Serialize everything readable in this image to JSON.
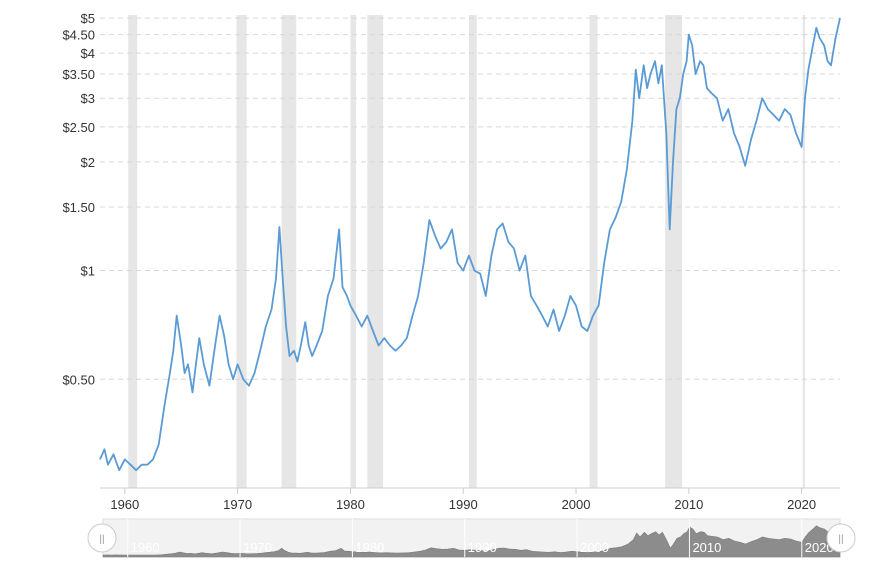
{
  "chart_data": {
    "type": "line",
    "title": "",
    "xlabel": "",
    "ylabel": "",
    "y_scale": "log",
    "ylim": [
      0.25,
      5.1
    ],
    "xlim": [
      1957.8,
      2023.4
    ],
    "y_ticks": [
      {
        "value": 5,
        "label": "$5"
      },
      {
        "value": 4.5,
        "label": "$4.50"
      },
      {
        "value": 4,
        "label": "$4"
      },
      {
        "value": 3.5,
        "label": "$3.50"
      },
      {
        "value": 3,
        "label": "$3"
      },
      {
        "value": 2.5,
        "label": "$2.50"
      },
      {
        "value": 2,
        "label": "$2"
      },
      {
        "value": 1.5,
        "label": "$1.50"
      },
      {
        "value": 1,
        "label": "$1"
      },
      {
        "value": 0.5,
        "label": "$0.50"
      }
    ],
    "x_ticks": [
      {
        "value": 1960,
        "label": "1960"
      },
      {
        "value": 1970,
        "label": "1970"
      },
      {
        "value": 1980,
        "label": "1980"
      },
      {
        "value": 1990,
        "label": "1990"
      },
      {
        "value": 2000,
        "label": "2000"
      },
      {
        "value": 2010,
        "label": "2010"
      },
      {
        "value": 2020,
        "label": "2020"
      }
    ],
    "grid": true,
    "line_color": "#5b9bd5",
    "recession_color": "#e6e6e6",
    "recessions": [
      [
        1960.3,
        1961.1
      ],
      [
        1969.9,
        1970.8
      ],
      [
        1973.9,
        1975.2
      ],
      [
        1980.0,
        1980.5
      ],
      [
        1981.5,
        1982.9
      ],
      [
        1990.5,
        1991.2
      ],
      [
        2001.2,
        2001.9
      ],
      [
        2007.9,
        2009.4
      ],
      [
        2020.1,
        2020.3
      ]
    ],
    "series": [
      {
        "x": [
          1957.8,
          1958.2,
          1958.5,
          1959.0,
          1959.5,
          1960.0,
          1960.5,
          1961.0,
          1961.5,
          1962.0,
          1962.5,
          1963.0,
          1963.5,
          1964.0,
          1964.3,
          1964.6,
          1965.0,
          1965.3,
          1965.6,
          1966.0,
          1966.3,
          1966.6,
          1967.0,
          1967.5,
          1968.0,
          1968.4,
          1968.8,
          1969.2,
          1969.6,
          1970.0,
          1970.5,
          1971.0,
          1971.5,
          1972.0,
          1972.5,
          1973.0,
          1973.4,
          1973.7,
          1974.0,
          1974.3,
          1974.6,
          1975.0,
          1975.3,
          1975.6,
          1976.0,
          1976.3,
          1976.6,
          1977.0,
          1977.5,
          1978.0,
          1978.5,
          1979.0,
          1979.3,
          1979.7,
          1980.0,
          1980.5,
          1981.0,
          1981.5,
          1982.0,
          1982.5,
          1983.0,
          1983.5,
          1984.0,
          1984.5,
          1985.0,
          1985.5,
          1986.0,
          1986.5,
          1987.0,
          1987.5,
          1988.0,
          1988.5,
          1989.0,
          1989.5,
          1990.0,
          1990.5,
          1991.0,
          1991.5,
          1992.0,
          1992.5,
          1993.0,
          1993.5,
          1994.0,
          1994.5,
          1995.0,
          1995.5,
          1996.0,
          1996.5,
          1997.0,
          1997.5,
          1998.0,
          1998.5,
          1999.0,
          1999.5,
          2000.0,
          2000.5,
          2001.0,
          2001.5,
          2002.0,
          2002.5,
          2003.0,
          2003.5,
          2004.0,
          2004.5,
          2005.0,
          2005.3,
          2005.6,
          2006.0,
          2006.3,
          2006.6,
          2007.0,
          2007.3,
          2007.6,
          2008.0,
          2008.3,
          2008.6,
          2008.9,
          2009.2,
          2009.5,
          2009.8,
          2010.0,
          2010.3,
          2010.6,
          2011.0,
          2011.3,
          2011.6,
          2012.0,
          2012.5,
          2013.0,
          2013.5,
          2014.0,
          2014.5,
          2015.0,
          2015.5,
          2016.0,
          2016.5,
          2017.0,
          2017.5,
          2018.0,
          2018.5,
          2019.0,
          2019.5,
          2020.0,
          2020.3,
          2020.6,
          2021.0,
          2021.3,
          2021.6,
          2022.0,
          2022.3,
          2022.6,
          2023.0,
          2023.4
        ],
        "values": [
          0.3,
          0.32,
          0.29,
          0.31,
          0.28,
          0.3,
          0.29,
          0.28,
          0.29,
          0.29,
          0.3,
          0.33,
          0.42,
          0.52,
          0.6,
          0.75,
          0.62,
          0.52,
          0.55,
          0.46,
          0.55,
          0.65,
          0.55,
          0.48,
          0.62,
          0.75,
          0.66,
          0.55,
          0.5,
          0.55,
          0.5,
          0.48,
          0.52,
          0.6,
          0.7,
          0.78,
          0.95,
          1.32,
          0.95,
          0.7,
          0.58,
          0.6,
          0.56,
          0.62,
          0.72,
          0.62,
          0.58,
          0.62,
          0.68,
          0.85,
          0.95,
          1.3,
          0.9,
          0.85,
          0.8,
          0.75,
          0.7,
          0.75,
          0.68,
          0.62,
          0.65,
          0.62,
          0.6,
          0.62,
          0.65,
          0.75,
          0.85,
          1.05,
          1.38,
          1.25,
          1.15,
          1.2,
          1.3,
          1.05,
          1.0,
          1.1,
          1.0,
          0.98,
          0.85,
          1.1,
          1.3,
          1.35,
          1.2,
          1.15,
          1.0,
          1.1,
          0.85,
          0.8,
          0.75,
          0.7,
          0.78,
          0.68,
          0.75,
          0.85,
          0.8,
          0.7,
          0.68,
          0.75,
          0.8,
          1.05,
          1.3,
          1.4,
          1.55,
          1.9,
          2.6,
          3.6,
          3.0,
          3.7,
          3.2,
          3.5,
          3.8,
          3.3,
          3.7,
          2.4,
          1.3,
          2.0,
          2.8,
          3.0,
          3.5,
          3.8,
          4.5,
          4.2,
          3.5,
          3.8,
          3.7,
          3.2,
          3.1,
          3.0,
          2.6,
          2.8,
          2.4,
          2.2,
          1.95,
          2.3,
          2.6,
          3.0,
          2.8,
          2.7,
          2.6,
          2.8,
          2.7,
          2.4,
          2.2,
          3.0,
          3.6,
          4.2,
          4.7,
          4.4,
          4.2,
          3.8,
          3.7,
          4.4,
          5.0
        ]
      }
    ]
  },
  "navigator": {
    "labels": [
      "1960",
      "1970",
      "1980",
      "1990",
      "2000",
      "2010",
      "2020"
    ],
    "left_handle_glyph": "||",
    "right_handle_glyph": "||"
  }
}
